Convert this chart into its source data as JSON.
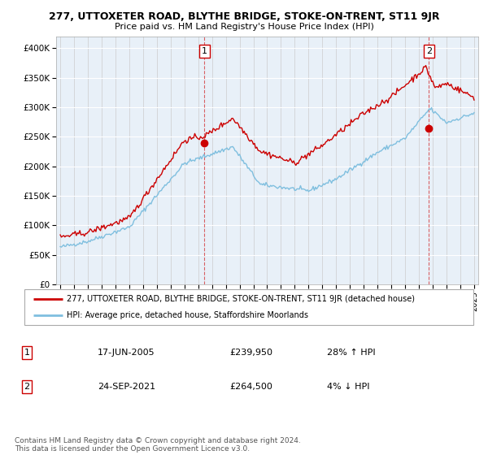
{
  "title1": "277, UTTOXETER ROAD, BLYTHE BRIDGE, STOKE-ON-TRENT, ST11 9JR",
  "title2": "Price paid vs. HM Land Registry's House Price Index (HPI)",
  "legend_line1": "277, UTTOXETER ROAD, BLYTHE BRIDGE, STOKE-ON-TRENT, ST11 9JR (detached house)",
  "legend_line2": "HPI: Average price, detached house, Staffordshire Moorlands",
  "annotation1_label": "1",
  "annotation1_date": "17-JUN-2005",
  "annotation1_price": "£239,950",
  "annotation1_hpi": "28% ↑ HPI",
  "annotation2_label": "2",
  "annotation2_date": "24-SEP-2021",
  "annotation2_price": "£264,500",
  "annotation2_hpi": "4% ↓ HPI",
  "footnote": "Contains HM Land Registry data © Crown copyright and database right 2024.\nThis data is licensed under the Open Government Licence v3.0.",
  "sale1_year": 2005.46,
  "sale1_price": 239950,
  "sale2_year": 2021.73,
  "sale2_price": 264500,
  "hpi_color": "#7fbfdf",
  "price_color": "#cc0000",
  "sale_dot_color": "#cc0000",
  "plot_bg": "#e8f0f8",
  "ylim": [
    0,
    420000
  ],
  "xlim_start": 1994.7,
  "xlim_end": 2025.3,
  "yticks": [
    0,
    50000,
    100000,
    150000,
    200000,
    250000,
    300000,
    350000,
    400000
  ],
  "ytick_labels": [
    "£0",
    "£50K",
    "£100K",
    "£150K",
    "£200K",
    "£250K",
    "£300K",
    "£350K",
    "£400K"
  ],
  "xticks": [
    1995,
    1996,
    1997,
    1998,
    1999,
    2000,
    2001,
    2002,
    2003,
    2004,
    2005,
    2006,
    2007,
    2008,
    2009,
    2010,
    2011,
    2012,
    2013,
    2014,
    2015,
    2016,
    2017,
    2018,
    2019,
    2020,
    2021,
    2022,
    2023,
    2024,
    2025
  ]
}
